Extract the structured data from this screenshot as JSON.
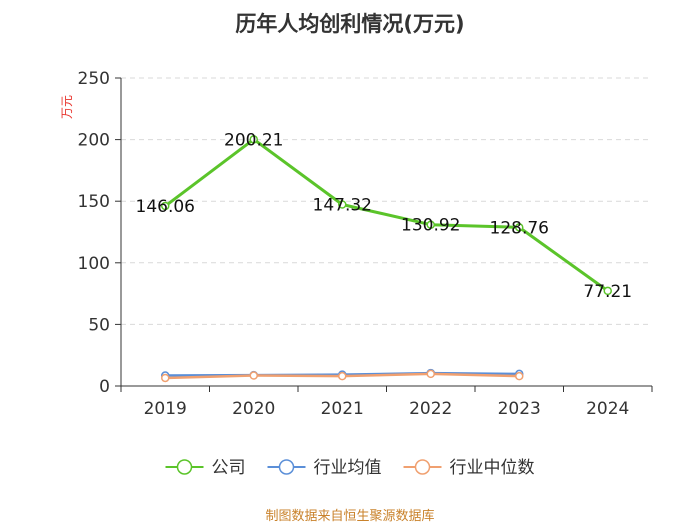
{
  "chart_data": {
    "type": "line",
    "title": "历年人均创利情况(万元)",
    "ylabel": "万元",
    "xlabel": "",
    "categories": [
      "2019",
      "2020",
      "2021",
      "2022",
      "2023",
      "2024"
    ],
    "ylim": [
      0,
      250
    ],
    "yticks": [
      0,
      50,
      100,
      150,
      200,
      250
    ],
    "grid": true,
    "legend_position": "bottom",
    "series": [
      {
        "name": "公司",
        "color": "#5bc42a",
        "values": [
          146.06,
          200.21,
          147.32,
          130.92,
          128.76,
          77.21
        ],
        "labels": [
          "146.06",
          "200.21",
          "147.32",
          "130.92",
          "128.76",
          "77.21"
        ]
      },
      {
        "name": "行业均值",
        "color": "#5b8fd8",
        "values": [
          8.5,
          8.8,
          9.2,
          10.5,
          9.8,
          null
        ]
      },
      {
        "name": "行业中位数",
        "color": "#f0a070",
        "values": [
          6.5,
          8.5,
          8.0,
          9.8,
          8.0,
          null
        ]
      }
    ],
    "source": "制图数据来自恒生聚源数据库"
  }
}
